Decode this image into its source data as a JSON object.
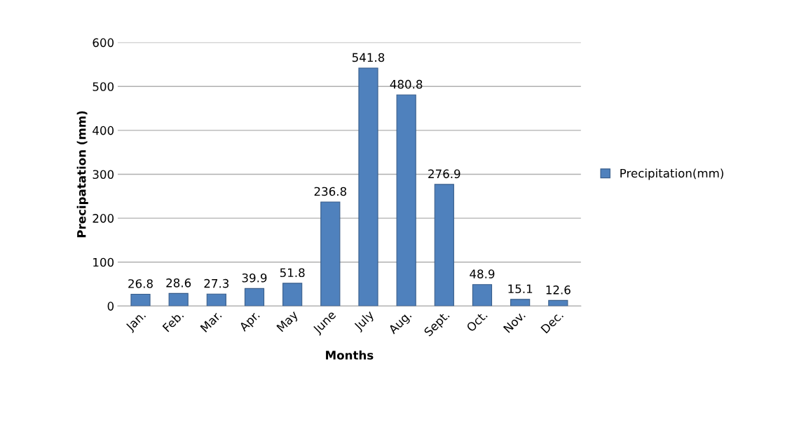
{
  "chart_data": {
    "type": "bar",
    "xlabel": "Months",
    "ylabel": "Precipatation (mm)",
    "categories": [
      "Jan.",
      "Feb.",
      "Mar.",
      "Apr.",
      "May",
      "June",
      "July",
      "Aug.",
      "Sept.",
      "Oct.",
      "Nov.",
      "Dec."
    ],
    "series": [
      {
        "name": "Precipitation(mm)",
        "color": "#4f81bd",
        "values": [
          26.8,
          28.6,
          27.3,
          39.9,
          51.8,
          236.8,
          541.8,
          480.8,
          276.9,
          48.9,
          15.1,
          12.6
        ]
      }
    ],
    "ylim": [
      0,
      600
    ],
    "yticks": [
      0,
      100,
      200,
      300,
      400,
      500,
      600
    ],
    "grid": "y",
    "legend": "right",
    "data_labels": true
  }
}
